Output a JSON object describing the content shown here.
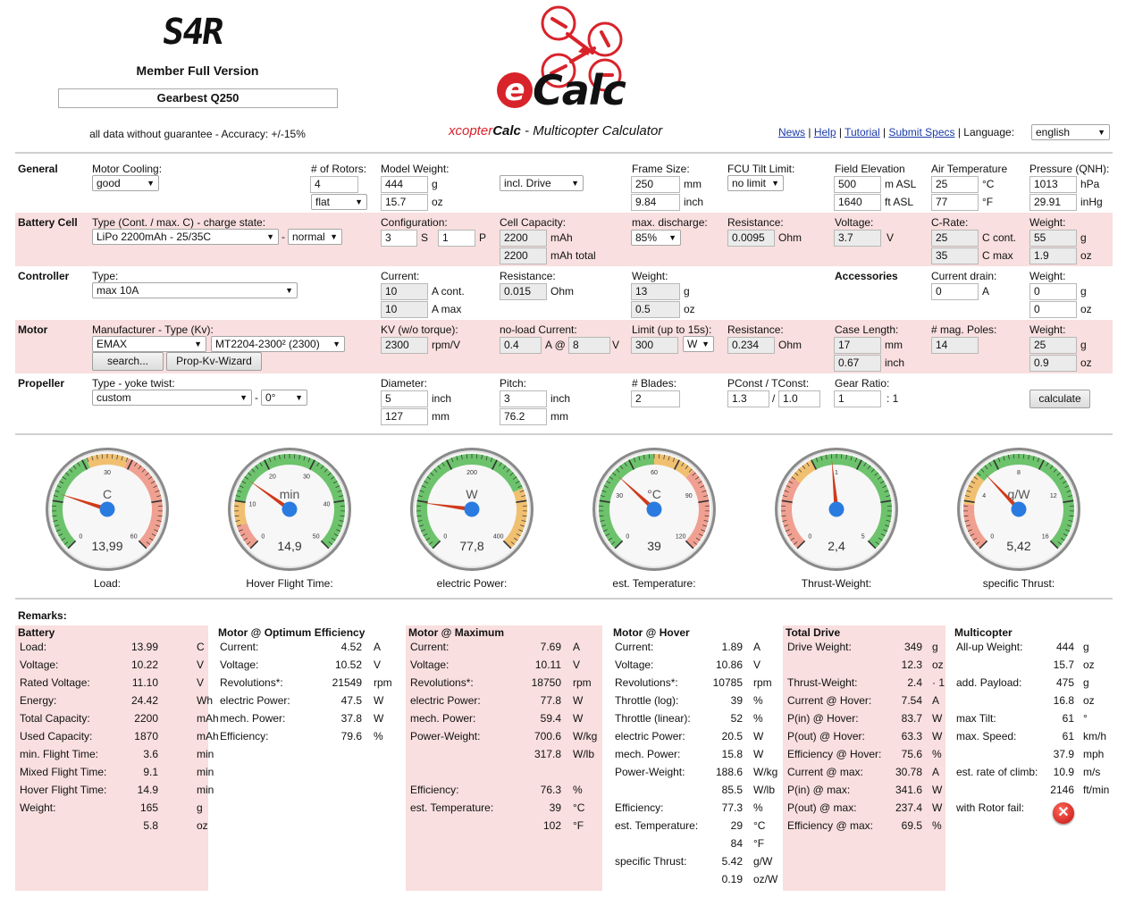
{
  "header": {
    "user_badge": "S4R",
    "member": "Member Full Version",
    "model_name": "Gearbest Q250",
    "disclaimer": "all data without guarantee - Accuracy: +/-15%",
    "logo_text": "Calc",
    "logo_e": "e",
    "subtitle_prefix": "xcopter",
    "subtitle_calc": "Calc",
    "subtitle_rest": " - Multicopter Calculator",
    "links": [
      "News",
      "Help",
      "Tutorial",
      "Submit Specs"
    ],
    "language_label": "Language:",
    "language": "english"
  },
  "general": {
    "title": "General",
    "cooling_label": "Motor Cooling:",
    "cooling": "good",
    "rotors_label": "# of Rotors:",
    "rotors": "4",
    "layout": "flat",
    "weight_label": "Model Weight:",
    "weight_g": "444",
    "weight_oz": "15.7",
    "u_g": "g",
    "u_oz": "oz",
    "drive": "incl. Drive",
    "frame_label": "Frame Size:",
    "frame_mm": "250",
    "frame_inch": "9.84",
    "u_mm": "mm",
    "u_inch": "inch",
    "tilt_label": "FCU Tilt Limit:",
    "tilt": "no limit",
    "elev_label": "Field Elevation",
    "elev_m": "500",
    "elev_ft": "1640",
    "u_masl": "m ASL",
    "u_ftasl": "ft ASL",
    "air_label": "Air Temperature",
    "air_c": "25",
    "air_f": "77",
    "u_c": "°C",
    "u_f": "°F",
    "press_label": "Pressure (QNH):",
    "press_hpa": "1013",
    "press_inhg": "29.91",
    "u_hpa": "hPa",
    "u_inhg": "inHg"
  },
  "battery": {
    "title": "Battery Cell",
    "type_label": "Type (Cont. / max. C) - charge state:",
    "type": "LiPo 2200mAh - 25/35C",
    "dash": "-",
    "state": "normal",
    "config_label": "Configuration:",
    "s": "3",
    "s_u": "S",
    "p": "1",
    "p_u": "P",
    "cap_label": "Cell Capacity:",
    "cap": "2200",
    "cap_total": "2200",
    "u_mah": "mAh",
    "u_mah_total": "mAh total",
    "dis_label": "max. discharge:",
    "dis": "85%",
    "res_label": "Resistance:",
    "res": "0.0095",
    "u_ohm": "Ohm",
    "volt_label": "Voltage:",
    "volt": "3.7",
    "u_v": "V",
    "crate_label": "C-Rate:",
    "c_cont": "25",
    "c_max": "35",
    "u_ccont": "C cont.",
    "u_cmax": "C max",
    "w_label": "Weight:",
    "w_g": "55",
    "w_oz": "1.9"
  },
  "controller": {
    "title": "Controller",
    "type_label": "Type:",
    "type": "max 10A",
    "cur_label": "Current:",
    "cur_cont": "10",
    "cur_max": "10",
    "u_acont": "A cont.",
    "u_amax": "A max",
    "res_label": "Resistance:",
    "res": "0.015",
    "u_ohm": "Ohm",
    "w_label": "Weight:",
    "w_g": "13",
    "w_oz": "0.5",
    "acc_title": "Accessories",
    "drain_label": "Current drain:",
    "drain": "0",
    "u_a": "A",
    "acc_w_label": "Weight:",
    "acc_w_g": "0",
    "acc_w_oz": "0"
  },
  "motor": {
    "title": "Motor",
    "mf_label": "Manufacturer - Type (Kv):",
    "mf": "EMAX",
    "type": "MT2204-2300² (2300)",
    "search": "search...",
    "wizard": "Prop-Kv-Wizard",
    "kv_label": "KV (w/o torque):",
    "kv": "2300",
    "u_kv": "rpm/V",
    "nl_label": "no-load Current:",
    "nl_a": "0.4",
    "nl_at": "A @",
    "nl_v": "8",
    "u_v": "V",
    "lim_label": "Limit (up to 15s):",
    "lim": "300",
    "lim_u": "W",
    "res_label": "Resistance:",
    "res": "0.234",
    "u_ohm": "Ohm",
    "case_label": "Case Length:",
    "case_mm": "17",
    "case_inch": "0.67",
    "u_mm": "mm",
    "u_inch": "inch",
    "poles_label": "# mag. Poles:",
    "poles": "14",
    "w_label": "Weight:",
    "w_g": "25",
    "w_oz": "0.9"
  },
  "propeller": {
    "title": "Propeller",
    "type_label": "Type - yoke twist:",
    "type": "custom",
    "dash": "-",
    "twist": "0°",
    "dia_label": "Diameter:",
    "dia_inch": "5",
    "dia_mm": "127",
    "pitch_label": "Pitch:",
    "pitch_inch": "3",
    "pitch_mm": "76.2",
    "blades_label": "# Blades:",
    "blades": "2",
    "pc_label": "PConst / TConst:",
    "pc": "1.3",
    "slash": "/",
    "tc": "1.0",
    "gear_label": "Gear Ratio:",
    "gear": "1",
    "gear_u": ": 1",
    "calculate": "calculate",
    "u_inch": "inch",
    "u_mm": "mm"
  },
  "gauges": [
    {
      "unit": "C",
      "value": "13,99",
      "label": "Load:",
      "ticks": [
        "0",
        "30",
        "60"
      ],
      "needle": 13.99,
      "min": 0,
      "max": 60,
      "zones": [
        [
          "#6cc36c",
          0,
          25
        ],
        [
          "#f0c070",
          25,
          35
        ],
        [
          "#f0a090",
          35,
          60
        ]
      ]
    },
    {
      "unit": "min",
      "value": "14,9",
      "label": "Hover Flight Time:",
      "ticks": [
        "0",
        "10",
        "20",
        "30",
        "40",
        "50"
      ],
      "needle": 14.9,
      "min": 0,
      "max": 50,
      "zones": [
        [
          "#f0a090",
          0,
          5
        ],
        [
          "#f0c070",
          5,
          10
        ],
        [
          "#6cc36c",
          10,
          50
        ]
      ]
    },
    {
      "unit": "W",
      "value": "77,8",
      "label": "electric Power:",
      "ticks": [
        "0",
        "200",
        "400"
      ],
      "needle": 77.8,
      "min": 0,
      "max": 400,
      "zones": [
        [
          "#6cc36c",
          0,
          300
        ],
        [
          "#f0c070",
          300,
          400
        ]
      ]
    },
    {
      "unit": "°C",
      "value": "39",
      "label": "est. Temperature:",
      "ticks": [
        "0",
        "30",
        "60",
        "90",
        "120"
      ],
      "needle": 39,
      "min": 0,
      "max": 120,
      "zones": [
        [
          "#6cc36c",
          0,
          60
        ],
        [
          "#f0c070",
          60,
          80
        ],
        [
          "#f0a090",
          80,
          120
        ]
      ]
    },
    {
      "unit": "",
      "value": "2,4",
      "label": "Thrust-Weight:",
      "ticks": [
        "0",
        "1",
        "5"
      ],
      "needle": 2.4,
      "min": 0,
      "max": 5,
      "zones": [
        [
          "#f0a090",
          0,
          1.5
        ],
        [
          "#f0c070",
          1.5,
          2
        ],
        [
          "#6cc36c",
          2,
          5
        ]
      ]
    },
    {
      "unit": "g/W",
      "value": "5,42",
      "label": "specific Thrust:",
      "ticks": [
        "0",
        "4",
        "8",
        "12",
        "16"
      ],
      "needle": 5.42,
      "min": 0,
      "max": 16,
      "zones": [
        [
          "#f0a090",
          0,
          3
        ],
        [
          "#f0c070",
          3,
          5
        ],
        [
          "#6cc36c",
          5,
          16
        ]
      ]
    }
  ],
  "remarks": {
    "title": "Remarks:",
    "battery": {
      "title": "Battery",
      "rows": [
        [
          "Load:",
          "13.99",
          "C"
        ],
        [
          "Voltage:",
          "10.22",
          "V"
        ],
        [
          "Rated Voltage:",
          "11.10",
          "V"
        ],
        [
          "Energy:",
          "24.42",
          "Wh"
        ],
        [
          "Total Capacity:",
          "2200",
          "mAh"
        ],
        [
          "Used Capacity:",
          "1870",
          "mAh"
        ],
        [
          "min. Flight Time:",
          "3.6",
          "min"
        ],
        [
          "Mixed Flight Time:",
          "9.1",
          "min"
        ],
        [
          "Hover Flight Time:",
          "14.9",
          "min"
        ],
        [
          "Weight:",
          "165",
          "g"
        ],
        [
          "",
          "5.8",
          "oz"
        ]
      ]
    },
    "opt": {
      "title": "Motor @ Optimum Efficiency",
      "rows": [
        [
          "Current:",
          "4.52",
          "A"
        ],
        [
          "Voltage:",
          "10.52",
          "V"
        ],
        [
          "Revolutions*:",
          "21549",
          "rpm"
        ],
        [
          "electric Power:",
          "47.5",
          "W"
        ],
        [
          "mech. Power:",
          "37.8",
          "W"
        ],
        [
          "Efficiency:",
          "79.6",
          "%"
        ]
      ]
    },
    "max": {
      "title": "Motor @ Maximum",
      "rows": [
        [
          "Current:",
          "7.69",
          "A"
        ],
        [
          "Voltage:",
          "10.11",
          "V"
        ],
        [
          "Revolutions*:",
          "18750",
          "rpm"
        ],
        [
          "electric Power:",
          "77.8",
          "W"
        ],
        [
          "mech. Power:",
          "59.4",
          "W"
        ],
        [
          "Power-Weight:",
          "700.6",
          "W/kg"
        ],
        [
          "",
          "317.8",
          "W/lb"
        ],
        [
          "",
          "",
          ""
        ],
        [
          "Efficiency:",
          "76.3",
          "%"
        ],
        [
          "est. Temperature:",
          "39",
          "°C"
        ],
        [
          "",
          "102",
          "°F"
        ]
      ]
    },
    "hover": {
      "title": "Motor @ Hover",
      "rows": [
        [
          "Current:",
          "1.89",
          "A"
        ],
        [
          "Voltage:",
          "10.86",
          "V"
        ],
        [
          "Revolutions*:",
          "10785",
          "rpm"
        ],
        [
          "Throttle (log):",
          "39",
          "%"
        ],
        [
          "Throttle (linear):",
          "52",
          "%"
        ],
        [
          "electric Power:",
          "20.5",
          "W"
        ],
        [
          "mech. Power:",
          "15.8",
          "W"
        ],
        [
          "Power-Weight:",
          "188.6",
          "W/kg"
        ],
        [
          "",
          "85.5",
          "W/lb"
        ],
        [
          "Efficiency:",
          "77.3",
          "%"
        ],
        [
          "est. Temperature:",
          "29",
          "°C"
        ],
        [
          "",
          "84",
          "°F"
        ],
        [
          "specific Thrust:",
          "5.42",
          "g/W"
        ],
        [
          "",
          "0.19",
          "oz/W"
        ]
      ]
    },
    "drive": {
      "title": "Total Drive",
      "rows": [
        [
          "Drive Weight:",
          "349",
          "g"
        ],
        [
          "",
          "12.3",
          "oz"
        ],
        [
          "Thrust-Weight:",
          "2.4",
          "· 1"
        ],
        [
          "Current @ Hover:",
          "7.54",
          "A"
        ],
        [
          "P(in) @ Hover:",
          "83.7",
          "W"
        ],
        [
          "P(out) @ Hover:",
          "63.3",
          "W"
        ],
        [
          "Efficiency @ Hover:",
          "75.6",
          "%"
        ],
        [
          "Current @ max:",
          "30.78",
          "A"
        ],
        [
          "P(in) @ max:",
          "341.6",
          "W"
        ],
        [
          "P(out) @ max:",
          "237.4",
          "W"
        ],
        [
          "Efficiency @ max:",
          "69.5",
          "%"
        ]
      ]
    },
    "multi": {
      "title": "Multicopter",
      "rows": [
        [
          "All-up Weight:",
          "444",
          "g"
        ],
        [
          "",
          "15.7",
          "oz"
        ],
        [
          "add. Payload:",
          "475",
          "g"
        ],
        [
          "",
          "16.8",
          "oz"
        ],
        [
          "max Tilt:",
          "61",
          "°"
        ],
        [
          "max. Speed:",
          "61",
          "km/h"
        ],
        [
          "",
          "37.9",
          "mph"
        ],
        [
          "est. rate of climb:",
          "10.9",
          "m/s"
        ],
        [
          "",
          "2146",
          "ft/min"
        ],
        [
          "with Rotor fail:",
          "",
          ""
        ]
      ]
    }
  }
}
